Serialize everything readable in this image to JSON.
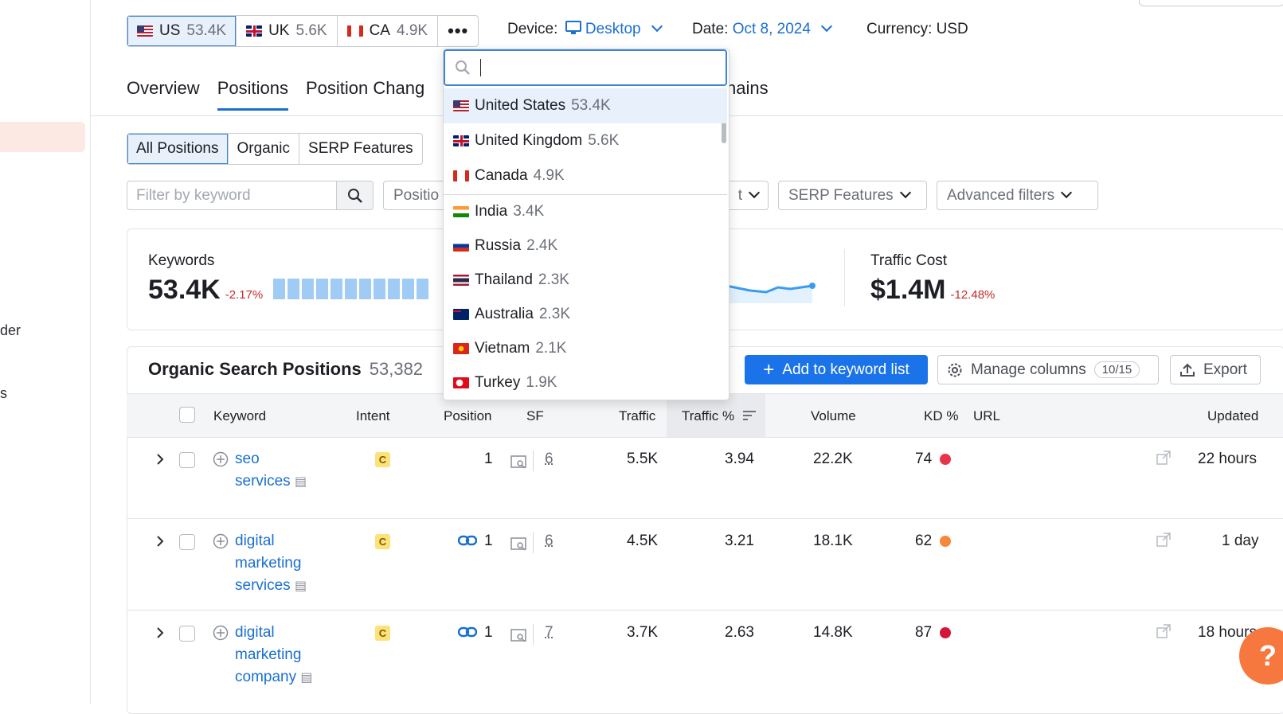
{
  "db_tabs": [
    {
      "code": "US",
      "count": "53.4K",
      "flag": "us"
    },
    {
      "code": "UK",
      "count": "5.6K",
      "flag": "uk"
    },
    {
      "code": "CA",
      "count": "4.9K",
      "flag": "ca"
    }
  ],
  "more_label": "•••",
  "device": {
    "label": "Device:",
    "value": "Desktop"
  },
  "date": {
    "label": "Date:",
    "value": "Oct 8, 2024"
  },
  "currency": "Currency: USD",
  "nav_tabs": {
    "overview": "Overview",
    "positions": "Positions",
    "position_changes": "Position Chang",
    "domains_tail": "nains"
  },
  "segments": {
    "all": "All Positions",
    "organic": "Organic",
    "serp": "SERP Features"
  },
  "filters": {
    "keyword_placeholder": "Filter by keyword",
    "position": "Positio",
    "hidden_tail": "t",
    "serp": "SERP Features",
    "advanced": "Advanced filters"
  },
  "summary": {
    "keywords_label": "Keywords",
    "keywords_value": "53.4K",
    "keywords_delta": "-2.17%",
    "traffic_cost_label": "Traffic Cost",
    "traffic_cost_value": "$1.4M",
    "traffic_cost_delta": "-12.48%"
  },
  "section": {
    "title": "Organic Search Positions",
    "count": "53,382",
    "add_btn": "Add to keyword list",
    "manage_btn": "Manage columns",
    "manage_count": "10/15",
    "export_btn": "Export"
  },
  "columns": {
    "keyword": "Keyword",
    "intent": "Intent",
    "position": "Position",
    "sf": "SF",
    "traffic": "Traffic",
    "traffic_pct": "Traffic %",
    "volume": "Volume",
    "kd": "KD %",
    "url": "URL",
    "updated": "Updated"
  },
  "rows": [
    {
      "kw1": "seo",
      "kw2": "services",
      "kw3": "",
      "intent": "C",
      "position": "1",
      "sf": "6",
      "traffic": "5.5K",
      "traffic_pct": "3.94",
      "volume": "22.2K",
      "kd": "74",
      "kd_color": "#e8344a",
      "updated": "22 hours"
    },
    {
      "kw1": "digital",
      "kw2": "marketing",
      "kw3": "services",
      "intent": "C",
      "position": "1",
      "sf": "6",
      "traffic": "4.5K",
      "traffic_pct": "3.21",
      "volume": "18.1K",
      "kd": "62",
      "kd_color": "#f5883a",
      "updated": "1 day"
    },
    {
      "kw1": "digital",
      "kw2": "marketing",
      "kw3": "company",
      "intent": "C",
      "position": "1",
      "sf": "7",
      "traffic": "3.7K",
      "traffic_pct": "2.63",
      "volume": "14.8K",
      "kd": "87",
      "kd_color": "#d3163a",
      "updated": "18 hours"
    }
  ],
  "dropdown": {
    "items": [
      {
        "name": "United States",
        "count": "53.4K",
        "flag": "us"
      },
      {
        "name": "United Kingdom",
        "count": "5.6K",
        "flag": "uk"
      },
      {
        "name": "Canada",
        "count": "4.9K",
        "flag": "ca"
      },
      {
        "name": "India",
        "count": "3.4K",
        "flag": "in"
      },
      {
        "name": "Russia",
        "count": "2.4K",
        "flag": "ru"
      },
      {
        "name": "Thailand",
        "count": "2.3K",
        "flag": "th"
      },
      {
        "name": "Australia",
        "count": "2.3K",
        "flag": "au"
      },
      {
        "name": "Vietnam",
        "count": "2.1K",
        "flag": "vn"
      },
      {
        "name": "Turkey",
        "count": "1.9K",
        "flag": "tr"
      }
    ]
  },
  "sidebar": {
    "frag1": "der",
    "frag2": "s"
  },
  "help_label": "?",
  "colors": {
    "accent": "#1a6fd1",
    "primary_btn": "#1a73e8",
    "help": "#f7783f",
    "negative": "#c32c2c"
  }
}
